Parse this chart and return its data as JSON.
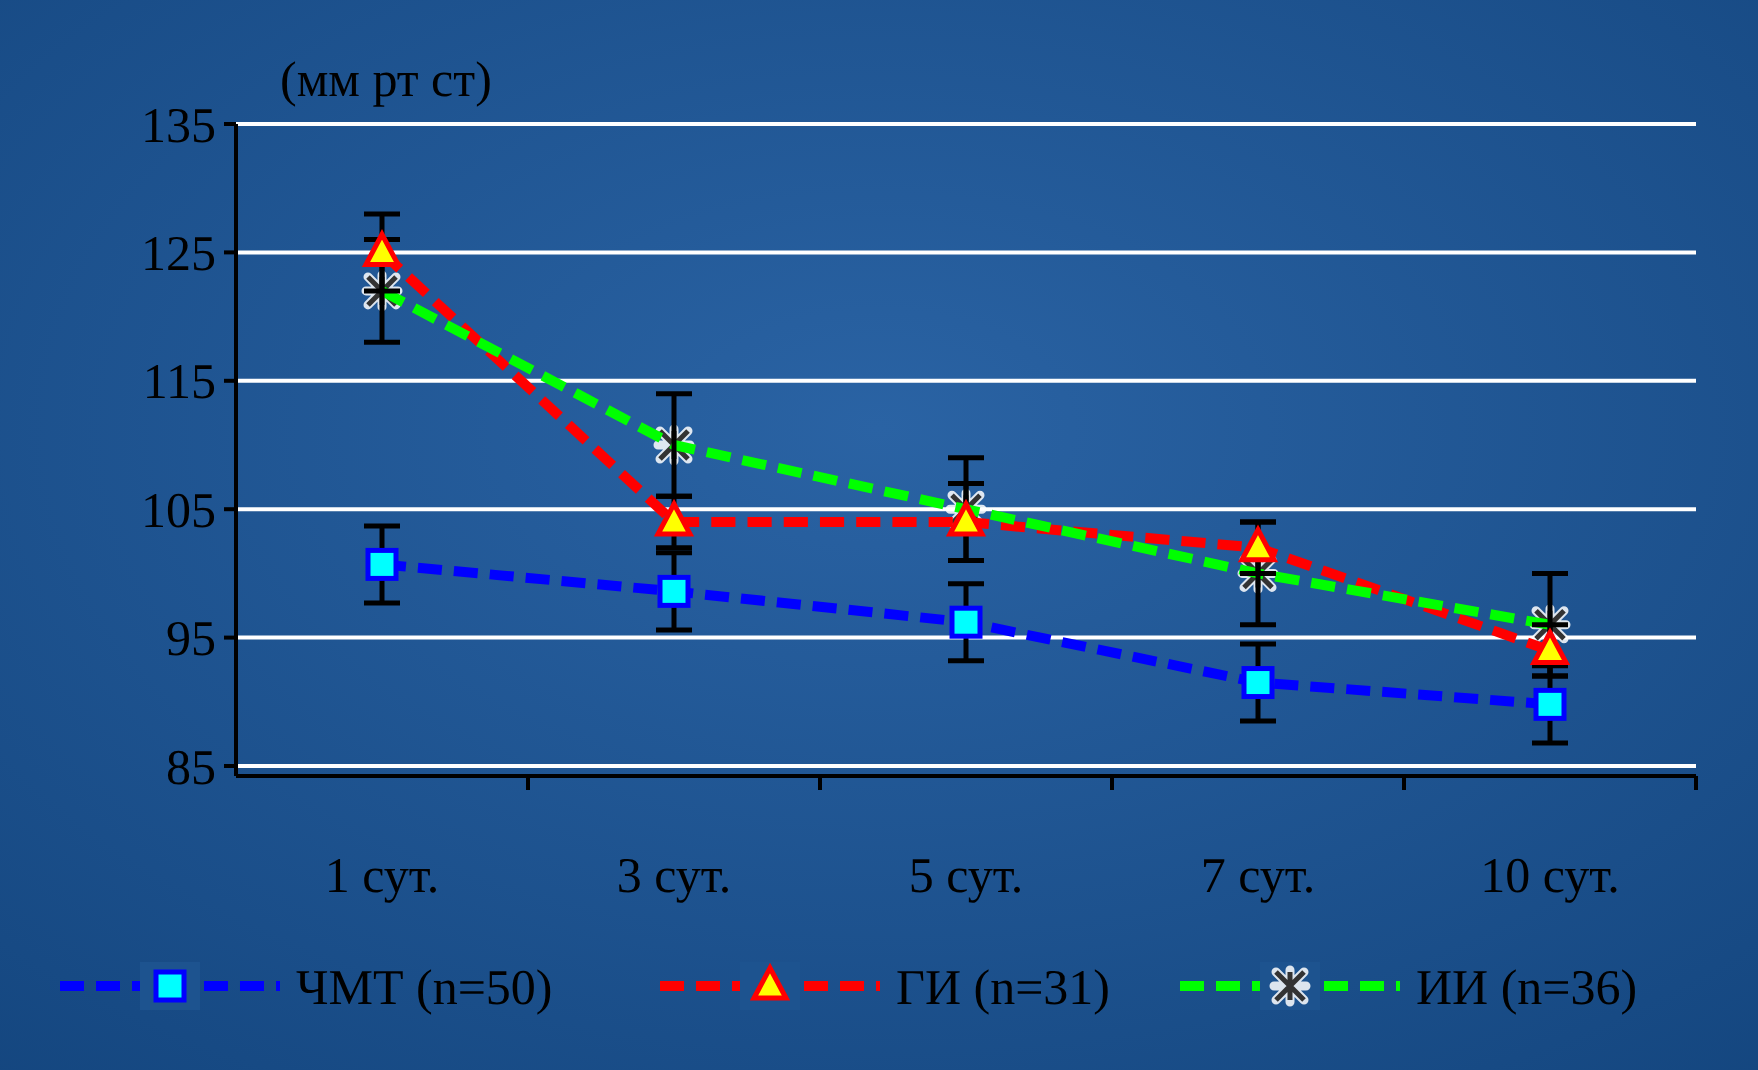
{
  "chart_data": {
    "type": "line",
    "ylabel": "(мм рт ст)",
    "categories": [
      "1 сут.",
      "3 сут.",
      "5 сут.",
      "7 сут.",
      "10 сут."
    ],
    "ylim": [
      85,
      135
    ],
    "yticks": [
      85,
      95,
      105,
      115,
      125,
      135
    ],
    "grid": "y",
    "legend": "bottom",
    "line_style": "dashed",
    "series": [
      {
        "name": "ЧМТ (n=50)",
        "color": "#0000ff",
        "marker": "square",
        "values": [
          100.7,
          98.6,
          96.2,
          91.5,
          89.8
        ],
        "errors": [
          3,
          3,
          3,
          3,
          3
        ]
      },
      {
        "name": "ГИ (n=31)",
        "color": "#ff0000",
        "marker": "triangle",
        "values": [
          125,
          104,
          104,
          102,
          94
        ],
        "errors": [
          3,
          2,
          3,
          2,
          2
        ]
      },
      {
        "name": "ИИ (n=36)",
        "color": "#00ff00",
        "marker": "cross",
        "values": [
          122,
          110,
          105,
          100,
          96
        ],
        "errors": [
          4,
          4,
          4,
          4,
          4
        ]
      }
    ]
  }
}
